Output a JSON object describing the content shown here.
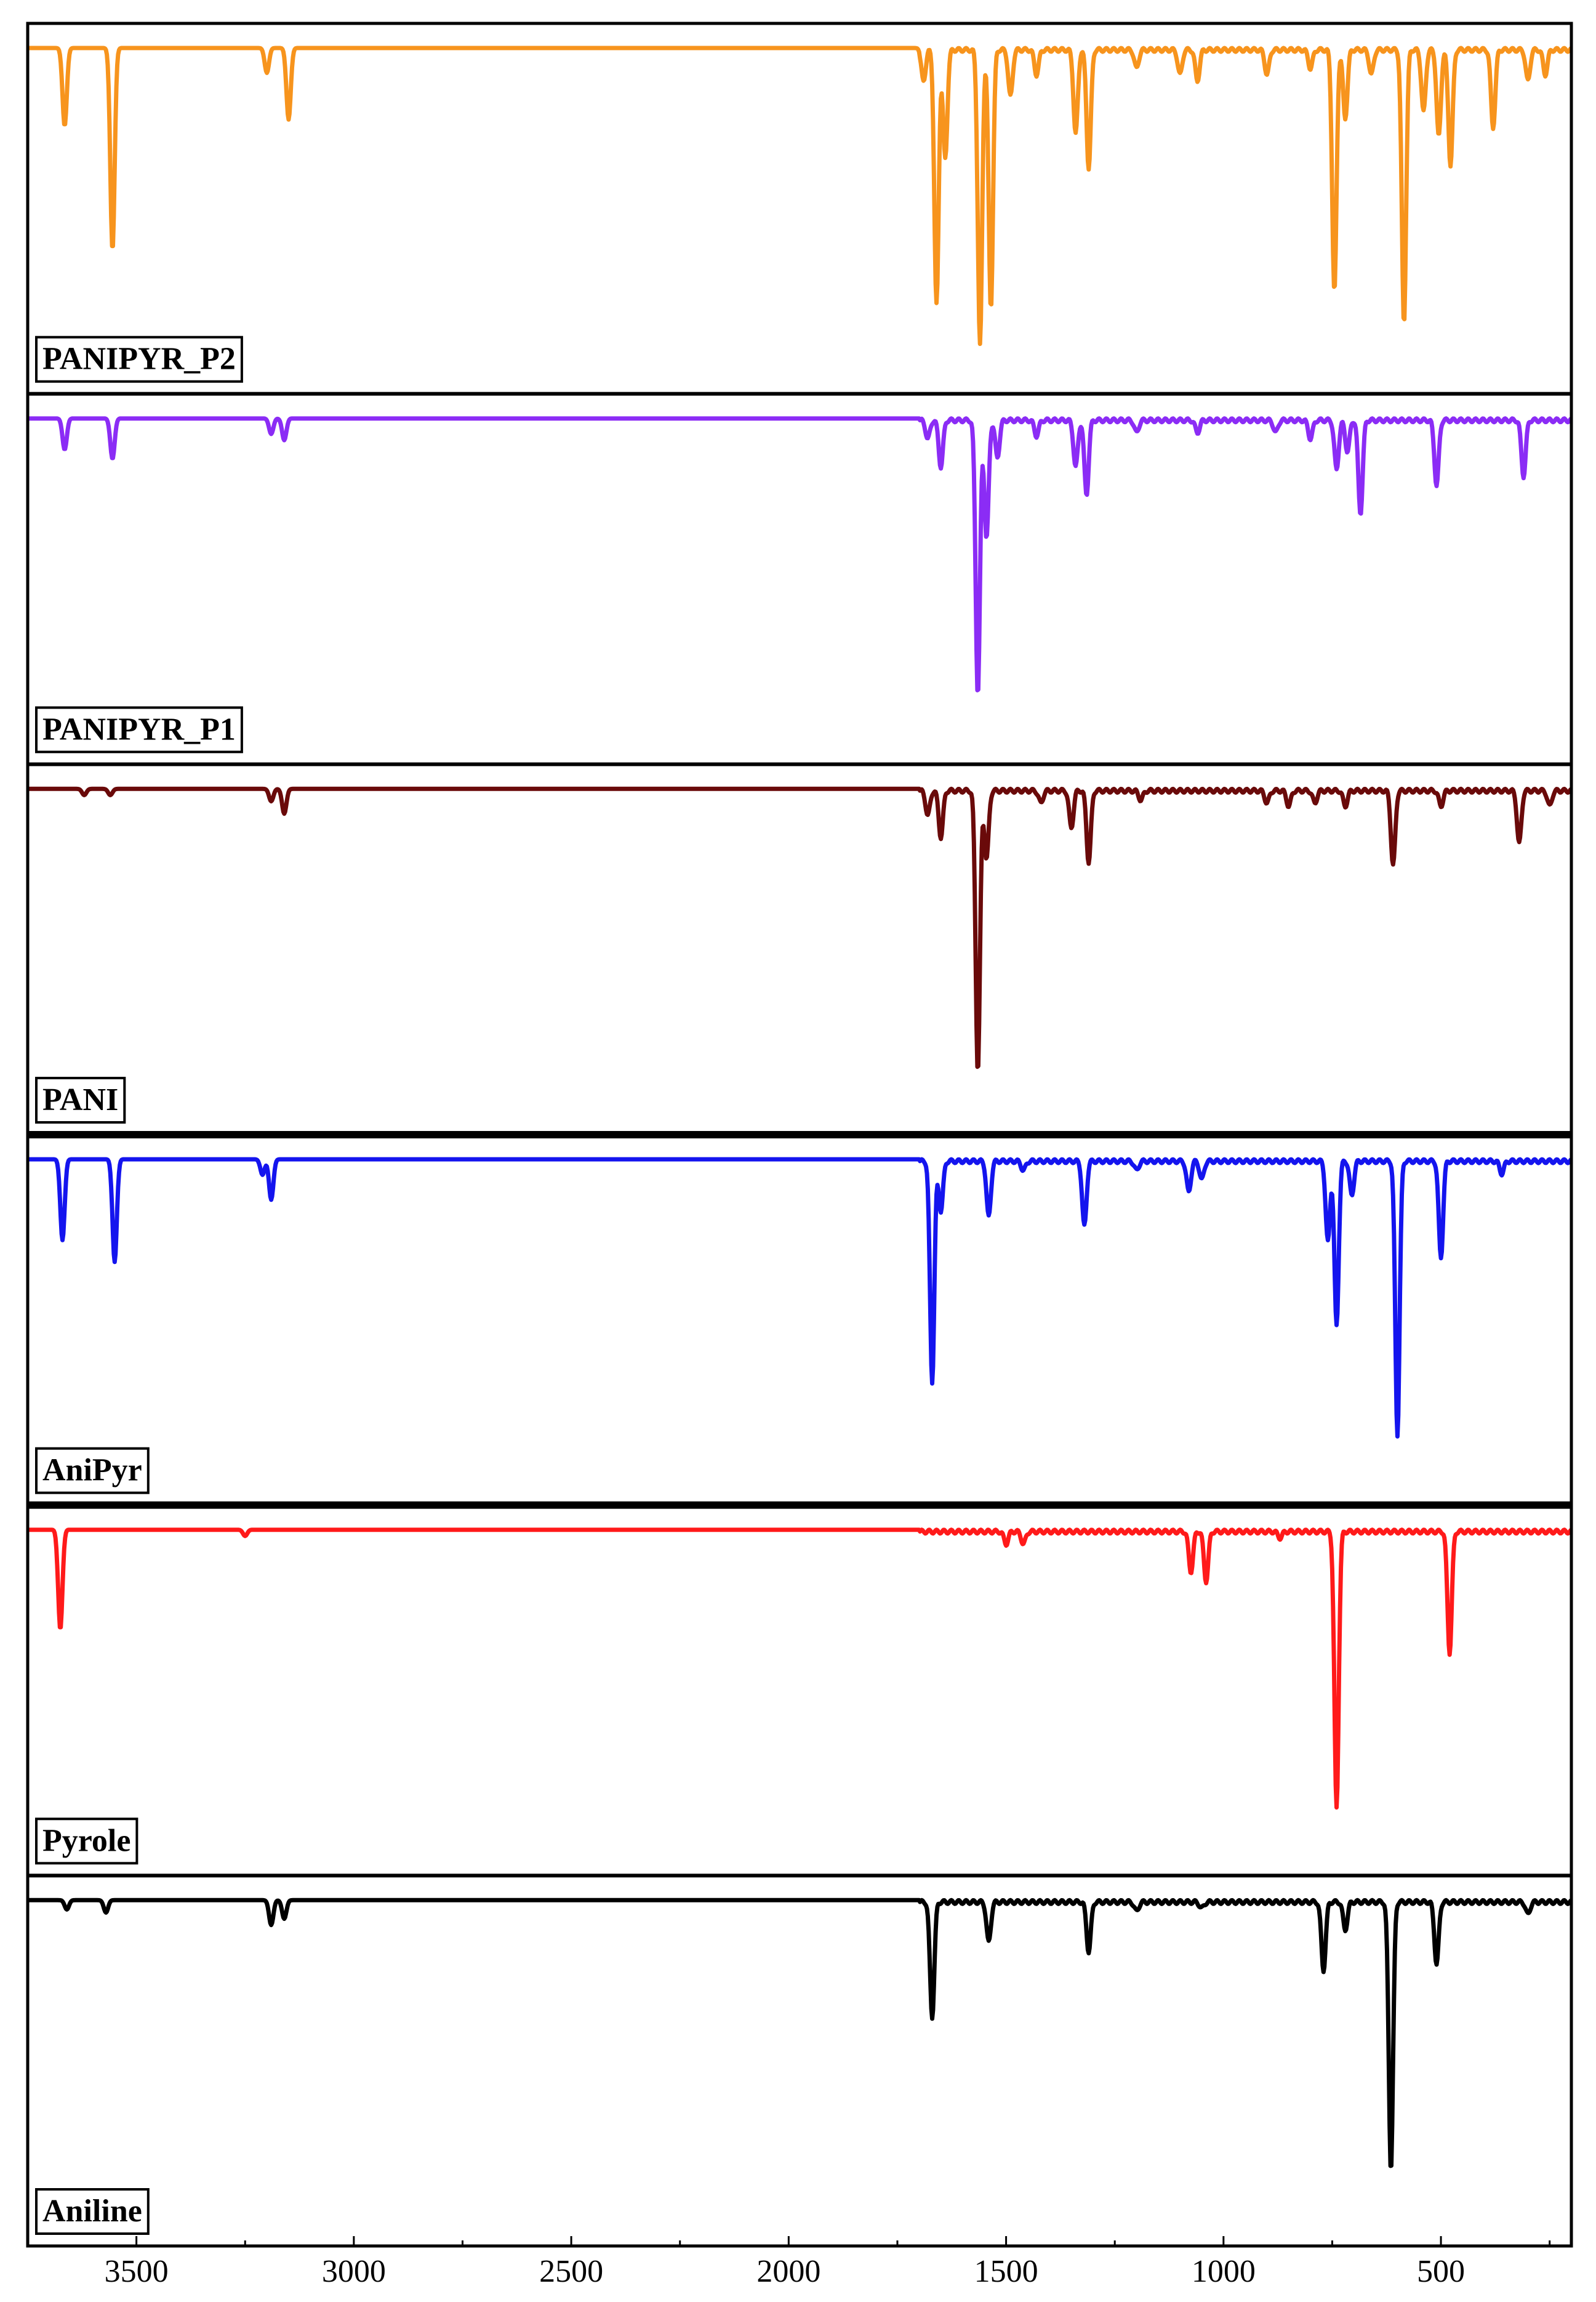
{
  "chart_data": {
    "type": "line",
    "title": "",
    "xlabel": "",
    "ylabel": "",
    "xlim": [
      3750,
      200
    ],
    "x_ticks": [
      3500,
      3000,
      2500,
      2000,
      1500,
      1000,
      500
    ],
    "x_tick_labels": [
      "3500",
      "3000",
      "2500",
      "2000",
      "1500",
      "1000",
      "500"
    ],
    "stacked_panels": true,
    "panels": [
      {
        "label": "PANIPYR_P2",
        "color": "#f7941d",
        "peaks": [
          {
            "x": 3665,
            "depth": 0.25
          },
          {
            "x": 3555,
            "depth": 0.65
          },
          {
            "x": 3200,
            "depth": 0.08
          },
          {
            "x": 3150,
            "depth": 0.23
          },
          {
            "x": 1690,
            "depth": 0.1
          },
          {
            "x": 1660,
            "depth": 0.82
          },
          {
            "x": 1640,
            "depth": 0.35
          },
          {
            "x": 1560,
            "depth": 0.95
          },
          {
            "x": 1535,
            "depth": 0.83
          },
          {
            "x": 1490,
            "depth": 0.15
          },
          {
            "x": 1430,
            "depth": 0.08
          },
          {
            "x": 1340,
            "depth": 0.27
          },
          {
            "x": 1310,
            "depth": 0.38
          },
          {
            "x": 1200,
            "depth": 0.06
          },
          {
            "x": 1100,
            "depth": 0.08
          },
          {
            "x": 1060,
            "depth": 0.1
          },
          {
            "x": 900,
            "depth": 0.08
          },
          {
            "x": 800,
            "depth": 0.06
          },
          {
            "x": 745,
            "depth": 0.78
          },
          {
            "x": 720,
            "depth": 0.22
          },
          {
            "x": 660,
            "depth": 0.08
          },
          {
            "x": 585,
            "depth": 0.88
          },
          {
            "x": 540,
            "depth": 0.2
          },
          {
            "x": 505,
            "depth": 0.28
          },
          {
            "x": 478,
            "depth": 0.37
          },
          {
            "x": 380,
            "depth": 0.25
          },
          {
            "x": 300,
            "depth": 0.1
          },
          {
            "x": 260,
            "depth": 0.08
          }
        ]
      },
      {
        "label": "PANIPYR_P1",
        "color": "#8b2cf5",
        "peaks": [
          {
            "x": 3665,
            "depth": 0.1
          },
          {
            "x": 3555,
            "depth": 0.13
          },
          {
            "x": 3190,
            "depth": 0.05
          },
          {
            "x": 3160,
            "depth": 0.07
          },
          {
            "x": 1680,
            "depth": 0.06
          },
          {
            "x": 1650,
            "depth": 0.15
          },
          {
            "x": 1565,
            "depth": 0.88
          },
          {
            "x": 1545,
            "depth": 0.38
          },
          {
            "x": 1520,
            "depth": 0.12
          },
          {
            "x": 1430,
            "depth": 0.05
          },
          {
            "x": 1340,
            "depth": 0.15
          },
          {
            "x": 1315,
            "depth": 0.24
          },
          {
            "x": 1200,
            "depth": 0.04
          },
          {
            "x": 1060,
            "depth": 0.04
          },
          {
            "x": 880,
            "depth": 0.04
          },
          {
            "x": 800,
            "depth": 0.06
          },
          {
            "x": 740,
            "depth": 0.16
          },
          {
            "x": 715,
            "depth": 0.1
          },
          {
            "x": 685,
            "depth": 0.3
          },
          {
            "x": 510,
            "depth": 0.21
          },
          {
            "x": 310,
            "depth": 0.18
          }
        ]
      },
      {
        "label": "PANI",
        "color": "#6a0a0a",
        "peaks": [
          {
            "x": 3620,
            "depth": 0.02
          },
          {
            "x": 3560,
            "depth": 0.02
          },
          {
            "x": 3190,
            "depth": 0.04
          },
          {
            "x": 3160,
            "depth": 0.08
          },
          {
            "x": 1680,
            "depth": 0.08
          },
          {
            "x": 1650,
            "depth": 0.15
          },
          {
            "x": 1565,
            "depth": 0.9
          },
          {
            "x": 1545,
            "depth": 0.22
          },
          {
            "x": 1420,
            "depth": 0.04
          },
          {
            "x": 1350,
            "depth": 0.12
          },
          {
            "x": 1310,
            "depth": 0.23
          },
          {
            "x": 1190,
            "depth": 0.03
          },
          {
            "x": 900,
            "depth": 0.04
          },
          {
            "x": 850,
            "depth": 0.05
          },
          {
            "x": 790,
            "depth": 0.04
          },
          {
            "x": 720,
            "depth": 0.05
          },
          {
            "x": 610,
            "depth": 0.24
          },
          {
            "x": 500,
            "depth": 0.05
          },
          {
            "x": 320,
            "depth": 0.17
          },
          {
            "x": 250,
            "depth": 0.05
          }
        ]
      },
      {
        "label": "AniPyr",
        "color": "#1414ee",
        "peaks": [
          {
            "x": 3670,
            "depth": 0.26
          },
          {
            "x": 3550,
            "depth": 0.33
          },
          {
            "x": 3190,
            "depth": 0.13
          },
          {
            "x": 3210,
            "depth": 0.05
          },
          {
            "x": 1670,
            "depth": 0.71
          },
          {
            "x": 1650,
            "depth": 0.16
          },
          {
            "x": 1540,
            "depth": 0.18
          },
          {
            "x": 1460,
            "depth": 0.03
          },
          {
            "x": 1320,
            "depth": 0.21
          },
          {
            "x": 1200,
            "depth": 0.03
          },
          {
            "x": 1080,
            "depth": 0.1
          },
          {
            "x": 1050,
            "depth": 0.06
          },
          {
            "x": 760,
            "depth": 0.26
          },
          {
            "x": 740,
            "depth": 0.53
          },
          {
            "x": 705,
            "depth": 0.11
          },
          {
            "x": 600,
            "depth": 0.88
          },
          {
            "x": 500,
            "depth": 0.31
          },
          {
            "x": 360,
            "depth": 0.04
          }
        ]
      },
      {
        "label": "Pyrole",
        "color": "#ff1a1a",
        "peaks": [
          {
            "x": 3675,
            "depth": 0.32
          },
          {
            "x": 3250,
            "depth": 0.02
          },
          {
            "x": 1500,
            "depth": 0.04
          },
          {
            "x": 1460,
            "depth": 0.04
          },
          {
            "x": 1075,
            "depth": 0.13
          },
          {
            "x": 1040,
            "depth": 0.16
          },
          {
            "x": 870,
            "depth": 0.02
          },
          {
            "x": 740,
            "depth": 0.89
          },
          {
            "x": 480,
            "depth": 0.39
          }
        ]
      },
      {
        "label": "Aniline",
        "color": "#000000",
        "peaks": [
          {
            "x": 3660,
            "depth": 0.03
          },
          {
            "x": 3570,
            "depth": 0.04
          },
          {
            "x": 3190,
            "depth": 0.08
          },
          {
            "x": 3160,
            "depth": 0.06
          },
          {
            "x": 1670,
            "depth": 0.37
          },
          {
            "x": 1540,
            "depth": 0.13
          },
          {
            "x": 1310,
            "depth": 0.16
          },
          {
            "x": 1200,
            "depth": 0.03
          },
          {
            "x": 1050,
            "depth": 0.02
          },
          {
            "x": 770,
            "depth": 0.22
          },
          {
            "x": 720,
            "depth": 0.09
          },
          {
            "x": 615,
            "depth": 0.86
          },
          {
            "x": 510,
            "depth": 0.2
          },
          {
            "x": 300,
            "depth": 0.04
          }
        ]
      }
    ]
  }
}
